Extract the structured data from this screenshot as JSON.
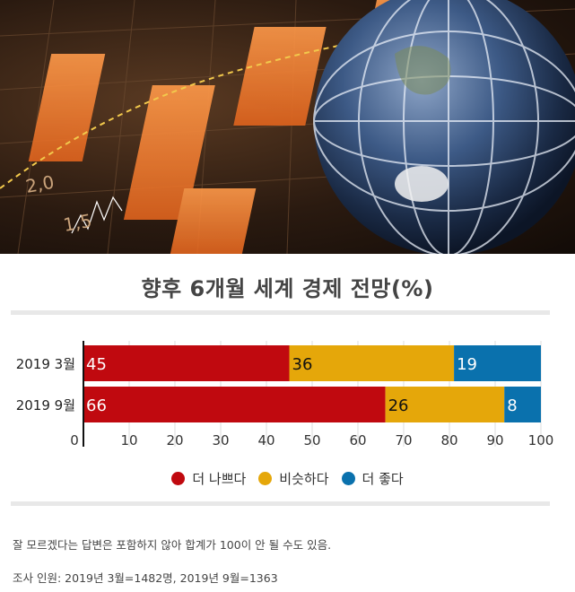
{
  "chart_data": {
    "type": "bar",
    "orientation": "horizontal",
    "stacked": true,
    "title": "향후 6개월 세계 경제 전망(%)",
    "categories": [
      "2019 3월",
      "2019 9월"
    ],
    "series": [
      {
        "name": "더 나쁘다",
        "color": "#c0090f",
        "values": [
          45,
          66
        ]
      },
      {
        "name": "비슷하다",
        "color": "#e5a70a",
        "values": [
          36,
          26
        ]
      },
      {
        "name": "더 좋다",
        "color": "#0a71ad",
        "values": [
          19,
          8
        ]
      }
    ],
    "xlim": [
      0,
      100
    ],
    "xticks": [
      "0",
      "10",
      "20",
      "30",
      "40",
      "50",
      "60",
      "70",
      "80",
      "90",
      "100"
    ],
    "grid": true,
    "legend": "bottom-center"
  },
  "notes": {
    "disclaimer": "잘 모르겠다는 답변은 포함하지 않아 합계가 100이 안 될 수도 있음.",
    "respondents": "조사 인원:  2019년 3월=1482명, 2019년 9월=1363"
  }
}
